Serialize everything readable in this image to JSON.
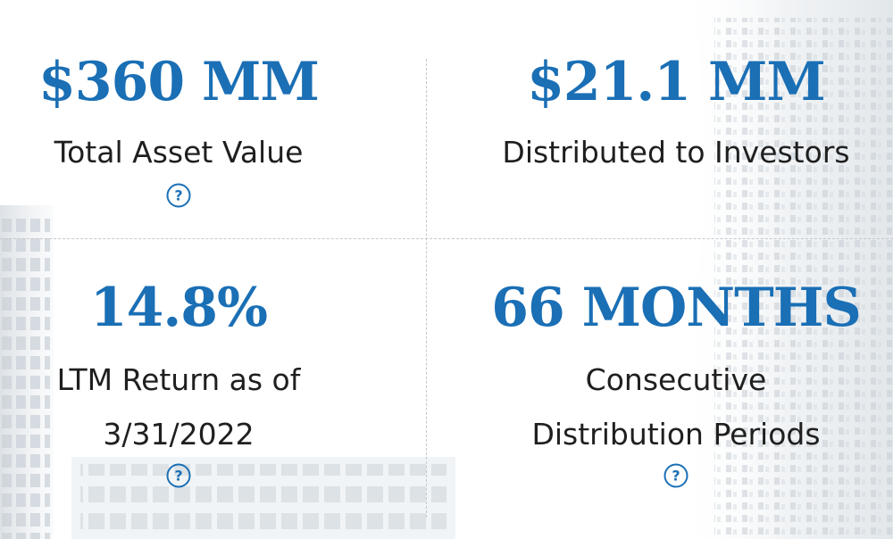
{
  "colors": {
    "accent": "#1a6fb5",
    "label_text": "#1f1f1f",
    "divider": "#c4c8cc"
  },
  "stats": [
    {
      "value": "$360 MM",
      "label_lines": [
        "Total Asset Value"
      ],
      "has_help": true
    },
    {
      "value": "$21.1 MM",
      "label_lines": [
        "Distributed to Investors"
      ],
      "has_help": false
    },
    {
      "value": "14.8%",
      "label_lines": [
        "LTM Return as of",
        "3/31/2022"
      ],
      "has_help": true
    },
    {
      "value": "66 MONTHS",
      "label_lines": [
        "Consecutive",
        "Distribution Periods"
      ],
      "has_help": true
    }
  ],
  "icons": {
    "help": "question-circle-icon"
  }
}
